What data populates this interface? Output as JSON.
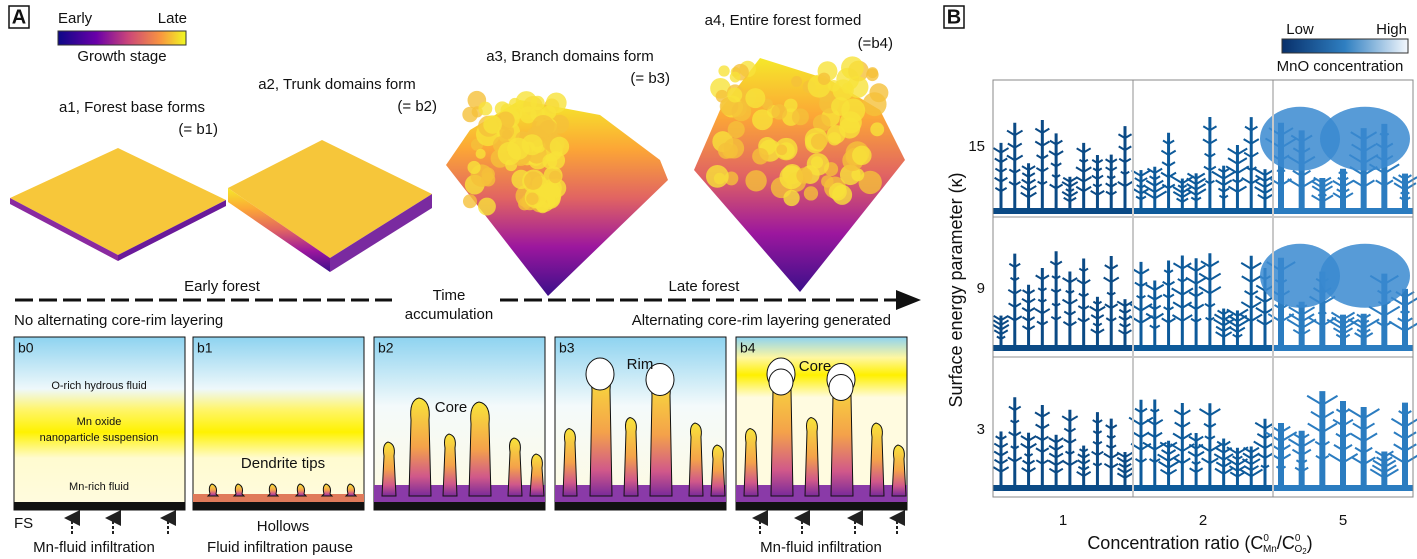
{
  "panel_a": {
    "label": "A",
    "colorbar": {
      "low": "Early",
      "high": "Late",
      "title": "Growth stage"
    },
    "stages": [
      {
        "title": "a1, Forest base forms",
        "ref": "(= b1)"
      },
      {
        "title": "a2, Trunk domains form",
        "ref": "(= b2)"
      },
      {
        "title": "a3, Branch domains form",
        "ref": "(= b3)"
      },
      {
        "title": "a4, Entire forest formed",
        "ref": "(=b4)"
      }
    ],
    "timeline": {
      "early": "Early forest",
      "center": [
        "Time",
        "accumulation"
      ],
      "late": "Late forest",
      "left_note": "No alternating core-rim layering",
      "right_note": "Alternating core-rim layering generated"
    },
    "panels": [
      {
        "label": "b0",
        "texts": [
          "O-rich hydrous fluid",
          "Mn oxide",
          "nanoparticle suspension",
          "Mn-rich fluid"
        ]
      },
      {
        "label": "b1",
        "texts": [
          "Dendrite tips"
        ]
      },
      {
        "label": "b2",
        "texts": [
          "Core"
        ]
      },
      {
        "label": "b3",
        "texts": [
          "Rim"
        ]
      },
      {
        "label": "b4",
        "texts": [
          "Core"
        ]
      }
    ],
    "bottom": {
      "fs": "FS",
      "hollows": "Hollows",
      "left": "Mn-fluid infiltration",
      "middle": "Fluid infiltration pause",
      "right": "Mn-fluid infiltration"
    }
  },
  "panel_b": {
    "label": "B",
    "colorbar": {
      "low": "Low",
      "high": "High",
      "title": "MnO concentration"
    },
    "y_label": "Surface energy parameter (κ)",
    "y_ticks": [
      "15",
      "9",
      "3"
    ],
    "x_ticks": [
      "1",
      "2",
      "5"
    ],
    "x_label": {
      "prefix": "Concentration ratio (C",
      "sup1": "0",
      "sub1": "Mn",
      "mid": "/C",
      "sup2": "0",
      "sub2": "O",
      "sub2b": "2",
      "suffix": ")"
    }
  }
}
